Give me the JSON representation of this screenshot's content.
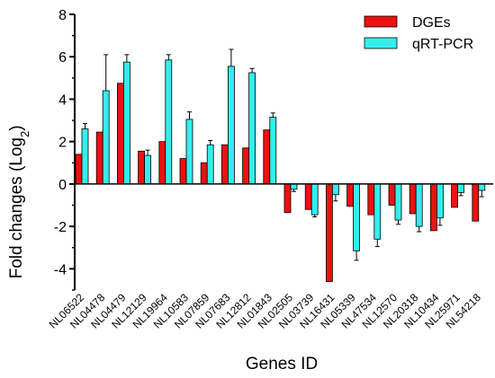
{
  "chart_data": {
    "type": "bar",
    "title": "",
    "xlabel": "Genes ID",
    "ylabel": "Fold changes (Log",
    "ylabel_sub": "2",
    "ylabel_close": ")",
    "ylim": [
      -5,
      8
    ],
    "yticks": [
      -4,
      -2,
      0,
      2,
      4,
      6,
      8
    ],
    "legend_position": "top-right",
    "categories": [
      "NL06522",
      "NL04478",
      "NL04479",
      "NL12129",
      "NL19964",
      "NL10583",
      "NL07859",
      "NL07683",
      "NL12812",
      "NL01843",
      "NL02505",
      "NL03739",
      "NL16431",
      "NL05339",
      "NL47534",
      "NL12570",
      "NL20318",
      "NL10434",
      "NL25971",
      "NL54218"
    ],
    "series": [
      {
        "name": "DGEs",
        "color": "#ee1111",
        "values": [
          1.4,
          2.45,
          4.75,
          1.55,
          2.0,
          1.2,
          1.0,
          1.85,
          1.7,
          2.55,
          -1.35,
          -1.2,
          -4.6,
          -1.05,
          -1.45,
          -1.0,
          -1.4,
          -2.2,
          -1.1,
          -1.75
        ]
      },
      {
        "name": "qRT-PCR",
        "color": "#33eeee",
        "values": [
          2.6,
          4.4,
          5.75,
          1.35,
          5.85,
          3.05,
          1.85,
          5.55,
          5.25,
          3.15,
          -0.25,
          -1.45,
          -0.5,
          -3.15,
          -2.6,
          -1.7,
          -2.0,
          -1.6,
          -0.4,
          -0.3
        ],
        "errors": [
          0.25,
          1.7,
          0.35,
          0.25,
          0.25,
          0.35,
          0.2,
          0.8,
          0.2,
          0.2,
          0.1,
          0.1,
          0.3,
          0.45,
          0.35,
          0.2,
          0.25,
          0.35,
          0.15,
          0.3
        ]
      }
    ]
  }
}
